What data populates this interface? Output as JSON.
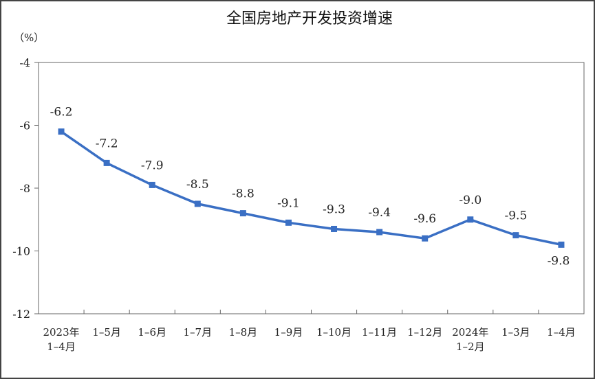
{
  "chart_data": {
    "type": "line",
    "title": "全国房地产开发投资增速",
    "y_unit": "（%）",
    "ylim": [
      -12,
      -4
    ],
    "yticks": [
      -4,
      -6,
      -8,
      -10,
      -12
    ],
    "categories": [
      [
        "2023年",
        "1–4月"
      ],
      [
        "1–5月"
      ],
      [
        "1–6月"
      ],
      [
        "1–7月"
      ],
      [
        "1–8月"
      ],
      [
        "1–9月"
      ],
      [
        "1–10月"
      ],
      [
        "1–11月"
      ],
      [
        "1–12月"
      ],
      [
        "2024年",
        "1–2月"
      ],
      [
        "1–3月"
      ],
      [
        "1–4月"
      ]
    ],
    "series": [
      {
        "values": [
          -6.2,
          -7.2,
          -7.9,
          -8.5,
          -8.8,
          -9.1,
          -9.3,
          -9.4,
          -9.6,
          -9.0,
          -9.5,
          -9.8
        ],
        "labels": [
          "-6.2",
          "-7.2",
          "-7.9",
          "-8.5",
          "-8.8",
          "-9.1",
          "-9.3",
          "-9.4",
          "-9.6",
          "-9.0",
          "-9.5",
          "-9.8"
        ],
        "color": "#3a6fc4"
      }
    ],
    "grid": false,
    "legend": "none"
  }
}
